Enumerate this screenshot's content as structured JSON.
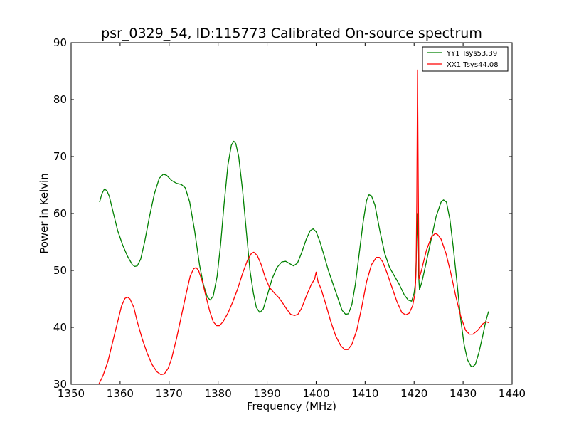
{
  "chart_data": {
    "type": "line",
    "title": "psr_0329_54, ID:115773 Calibrated On-source spectrum",
    "xlabel": "Frequency (MHz)",
    "ylabel": "Power in Kelvin",
    "xlim": [
      1350,
      1440
    ],
    "ylim": [
      30,
      90
    ],
    "xticks": [
      1350,
      1360,
      1370,
      1380,
      1390,
      1400,
      1410,
      1420,
      1430,
      1440
    ],
    "yticks": [
      30,
      40,
      50,
      60,
      70,
      80,
      90
    ],
    "grid": false,
    "legend_position": "top-right",
    "series": [
      {
        "name": "YY1 Tsys53.39",
        "color": "#008000",
        "points": [
          [
            1355.8,
            62.0
          ],
          [
            1356.3,
            63.5
          ],
          [
            1356.8,
            64.3
          ],
          [
            1357.3,
            64.0
          ],
          [
            1357.8,
            63.0
          ],
          [
            1358.5,
            60.5
          ],
          [
            1359.5,
            57.0
          ],
          [
            1360.5,
            54.5
          ],
          [
            1361.5,
            52.5
          ],
          [
            1362.5,
            51.0
          ],
          [
            1363.0,
            50.7
          ],
          [
            1363.5,
            50.8
          ],
          [
            1364.2,
            52.0
          ],
          [
            1365.0,
            55.0
          ],
          [
            1366.0,
            59.5
          ],
          [
            1367.0,
            63.5
          ],
          [
            1368.0,
            66.2
          ],
          [
            1368.8,
            66.9
          ],
          [
            1369.5,
            66.7
          ],
          [
            1370.5,
            65.8
          ],
          [
            1371.5,
            65.3
          ],
          [
            1372.5,
            65.1
          ],
          [
            1373.3,
            64.5
          ],
          [
            1374.2,
            62.0
          ],
          [
            1375.2,
            57.0
          ],
          [
            1376.2,
            51.0
          ],
          [
            1377.0,
            47.5
          ],
          [
            1377.8,
            45.3
          ],
          [
            1378.4,
            44.8
          ],
          [
            1379.0,
            45.5
          ],
          [
            1379.8,
            49.0
          ],
          [
            1380.5,
            54.5
          ],
          [
            1381.2,
            61.5
          ],
          [
            1382.0,
            68.5
          ],
          [
            1382.7,
            72.0
          ],
          [
            1383.2,
            72.7
          ],
          [
            1383.6,
            72.3
          ],
          [
            1384.2,
            70.0
          ],
          [
            1385.0,
            64.0
          ],
          [
            1385.8,
            56.5
          ],
          [
            1386.5,
            50.0
          ],
          [
            1387.2,
            46.0
          ],
          [
            1387.8,
            43.5
          ],
          [
            1388.5,
            42.6
          ],
          [
            1389.2,
            43.2
          ],
          [
            1390.0,
            45.5
          ],
          [
            1391.0,
            48.5
          ],
          [
            1392.0,
            50.5
          ],
          [
            1393.0,
            51.5
          ],
          [
            1393.8,
            51.6
          ],
          [
            1394.6,
            51.2
          ],
          [
            1395.4,
            50.8
          ],
          [
            1396.2,
            51.3
          ],
          [
            1397.0,
            53.0
          ],
          [
            1398.0,
            55.5
          ],
          [
            1398.8,
            57.0
          ],
          [
            1399.4,
            57.3
          ],
          [
            1400.0,
            56.8
          ],
          [
            1400.8,
            55.0
          ],
          [
            1401.5,
            53.0
          ],
          [
            1402.5,
            50.0
          ],
          [
            1403.5,
            47.5
          ],
          [
            1404.5,
            45.0
          ],
          [
            1405.3,
            43.0
          ],
          [
            1406.0,
            42.3
          ],
          [
            1406.6,
            42.4
          ],
          [
            1407.3,
            44.0
          ],
          [
            1408.0,
            47.5
          ],
          [
            1408.8,
            53.0
          ],
          [
            1409.6,
            58.5
          ],
          [
            1410.3,
            62.3
          ],
          [
            1410.8,
            63.3
          ],
          [
            1411.3,
            63.1
          ],
          [
            1412.0,
            61.5
          ],
          [
            1413.0,
            57.0
          ],
          [
            1414.0,
            53.0
          ],
          [
            1415.0,
            50.5
          ],
          [
            1416.0,
            49.0
          ],
          [
            1417.0,
            47.5
          ],
          [
            1418.0,
            45.7
          ],
          [
            1418.8,
            44.8
          ],
          [
            1419.5,
            44.6
          ],
          [
            1420.0,
            46.0
          ],
          [
            1420.3,
            48.0
          ],
          [
            1420.7,
            60.0
          ],
          [
            1420.9,
            49.5
          ],
          [
            1421.1,
            46.6
          ],
          [
            1421.6,
            48.0
          ],
          [
            1422.5,
            51.5
          ],
          [
            1423.5,
            55.5
          ],
          [
            1424.5,
            59.5
          ],
          [
            1425.5,
            62.0
          ],
          [
            1426.0,
            62.4
          ],
          [
            1426.6,
            62.0
          ],
          [
            1427.3,
            59.0
          ],
          [
            1428.0,
            54.0
          ],
          [
            1428.8,
            47.5
          ],
          [
            1429.5,
            41.5
          ],
          [
            1430.2,
            37.0
          ],
          [
            1430.9,
            34.3
          ],
          [
            1431.6,
            33.2
          ],
          [
            1432.0,
            33.1
          ],
          [
            1432.5,
            33.5
          ],
          [
            1433.2,
            35.5
          ],
          [
            1434.0,
            38.5
          ],
          [
            1434.6,
            41.0
          ],
          [
            1435.2,
            42.8
          ]
        ]
      },
      {
        "name": "XX1 Tsys44.08",
        "color": "#ff0000",
        "points": [
          [
            1355.7,
            30.1
          ],
          [
            1356.5,
            31.5
          ],
          [
            1357.5,
            34.0
          ],
          [
            1358.5,
            37.5
          ],
          [
            1359.5,
            41.0
          ],
          [
            1360.3,
            43.8
          ],
          [
            1361.0,
            45.1
          ],
          [
            1361.5,
            45.3
          ],
          [
            1362.0,
            45.0
          ],
          [
            1362.8,
            43.5
          ],
          [
            1363.5,
            41.0
          ],
          [
            1364.5,
            38.0
          ],
          [
            1365.5,
            35.5
          ],
          [
            1366.5,
            33.5
          ],
          [
            1367.5,
            32.2
          ],
          [
            1368.3,
            31.7
          ],
          [
            1369.0,
            31.8
          ],
          [
            1369.8,
            32.8
          ],
          [
            1370.5,
            34.5
          ],
          [
            1371.5,
            38.0
          ],
          [
            1372.5,
            42.0
          ],
          [
            1373.5,
            46.0
          ],
          [
            1374.3,
            49.0
          ],
          [
            1375.0,
            50.3
          ],
          [
            1375.5,
            50.5
          ],
          [
            1376.0,
            50.0
          ],
          [
            1376.8,
            48.0
          ],
          [
            1377.5,
            45.5
          ],
          [
            1378.3,
            42.8
          ],
          [
            1379.0,
            41.0
          ],
          [
            1379.7,
            40.3
          ],
          [
            1380.3,
            40.3
          ],
          [
            1381.0,
            41.0
          ],
          [
            1382.0,
            42.5
          ],
          [
            1383.0,
            44.5
          ],
          [
            1384.0,
            46.8
          ],
          [
            1385.0,
            49.5
          ],
          [
            1386.0,
            51.8
          ],
          [
            1386.8,
            53.0
          ],
          [
            1387.3,
            53.2
          ],
          [
            1388.0,
            52.6
          ],
          [
            1388.8,
            51.0
          ],
          [
            1389.6,
            48.8
          ],
          [
            1390.5,
            47.0
          ],
          [
            1391.5,
            46.0
          ],
          [
            1392.3,
            45.3
          ],
          [
            1393.0,
            44.5
          ],
          [
            1394.0,
            43.2
          ],
          [
            1394.8,
            42.3
          ],
          [
            1395.6,
            42.1
          ],
          [
            1396.3,
            42.3
          ],
          [
            1397.0,
            43.3
          ],
          [
            1398.0,
            45.5
          ],
          [
            1399.0,
            47.5
          ],
          [
            1399.7,
            48.5
          ],
          [
            1400.0,
            49.7
          ],
          [
            1400.4,
            48.0
          ],
          [
            1401.0,
            46.8
          ],
          [
            1402.0,
            44.0
          ],
          [
            1403.0,
            41.0
          ],
          [
            1404.0,
            38.5
          ],
          [
            1405.0,
            36.8
          ],
          [
            1405.8,
            36.1
          ],
          [
            1406.5,
            36.1
          ],
          [
            1407.3,
            37.0
          ],
          [
            1408.3,
            39.5
          ],
          [
            1409.3,
            43.5
          ],
          [
            1410.3,
            48.0
          ],
          [
            1411.3,
            51.0
          ],
          [
            1412.3,
            52.3
          ],
          [
            1412.9,
            52.3
          ],
          [
            1413.6,
            51.5
          ],
          [
            1414.5,
            49.5
          ],
          [
            1415.5,
            47.0
          ],
          [
            1416.5,
            44.5
          ],
          [
            1417.5,
            42.6
          ],
          [
            1418.3,
            42.2
          ],
          [
            1419.0,
            42.5
          ],
          [
            1419.7,
            43.8
          ],
          [
            1420.2,
            46.0
          ],
          [
            1420.4,
            50.0
          ],
          [
            1420.55,
            62.0
          ],
          [
            1420.7,
            85.2
          ],
          [
            1420.85,
            65.0
          ],
          [
            1421.0,
            48.5
          ],
          [
            1421.5,
            50.0
          ],
          [
            1422.5,
            53.5
          ],
          [
            1423.5,
            55.8
          ],
          [
            1424.3,
            56.5
          ],
          [
            1424.8,
            56.3
          ],
          [
            1425.5,
            55.5
          ],
          [
            1426.5,
            53.0
          ],
          [
            1427.5,
            49.5
          ],
          [
            1428.5,
            45.5
          ],
          [
            1429.5,
            42.0
          ],
          [
            1430.5,
            39.5
          ],
          [
            1431.3,
            38.8
          ],
          [
            1432.0,
            38.8
          ],
          [
            1433.0,
            39.5
          ],
          [
            1434.0,
            40.6
          ],
          [
            1434.7,
            41.0
          ],
          [
            1435.3,
            40.8
          ]
        ]
      }
    ]
  }
}
